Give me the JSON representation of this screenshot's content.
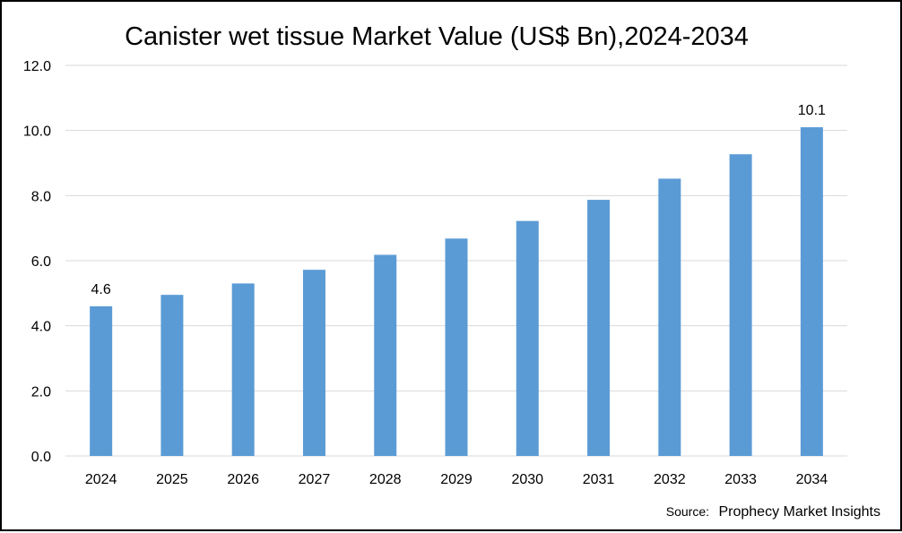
{
  "chart_data": {
    "type": "bar",
    "title": "Canister wet tissue Market Value (US$ Bn),2024-2034",
    "categories": [
      "2024",
      "2025",
      "2026",
      "2027",
      "2028",
      "2029",
      "2030",
      "2031",
      "2032",
      "2033",
      "2034"
    ],
    "series": [
      {
        "values": [
          4.6,
          4.95,
          5.3,
          5.72,
          6.18,
          6.68,
          7.22,
          7.87,
          8.52,
          9.27,
          10.1
        ]
      }
    ],
    "data_labels": [
      {
        "category": "2024",
        "text": "4.6"
      },
      {
        "category": "2034",
        "text": "10.1"
      }
    ],
    "yticks": [
      "0.0",
      "2.0",
      "4.0",
      "6.0",
      "8.0",
      "10.0",
      "12.0"
    ],
    "ylim": [
      0,
      12
    ],
    "xlabel": "",
    "ylabel": "",
    "grid": true,
    "bar_color": "#5b9bd5",
    "grid_color": "#d9d9d9"
  },
  "source": {
    "prefix": "Source:",
    "text": "Prophecy Market Insights"
  }
}
